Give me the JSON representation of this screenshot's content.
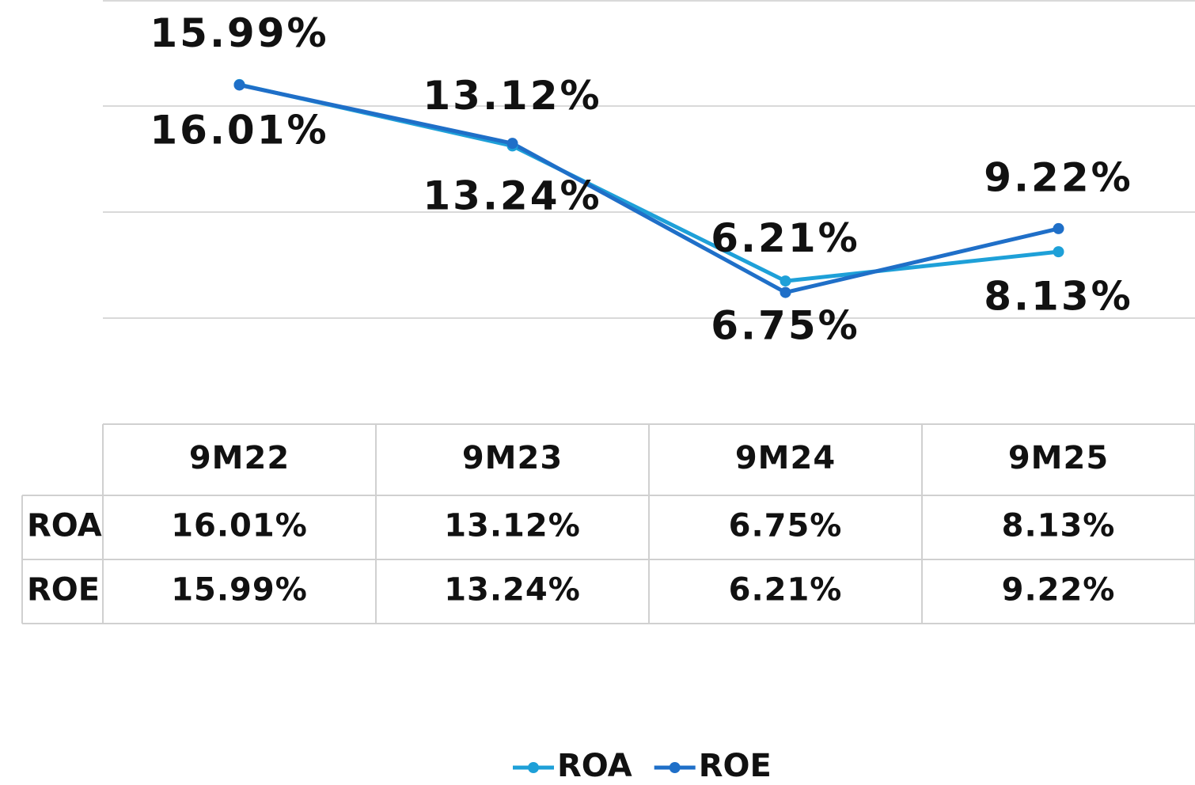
{
  "chart_data": {
    "type": "line",
    "categories": [
      "9M22",
      "9M23",
      "9M24",
      "9M25"
    ],
    "series": [
      {
        "name": "ROA",
        "color": "#1ea0d8",
        "values": [
          16.01,
          13.12,
          6.75,
          8.13
        ],
        "value_labels": [
          "16.01%",
          "13.12%",
          "6.75%",
          "8.13%"
        ]
      },
      {
        "name": "ROE",
        "color": "#1f6fc8",
        "values": [
          15.99,
          13.24,
          6.21,
          9.22
        ],
        "value_labels": [
          "15.99%",
          "13.24%",
          "6.21%",
          "9.22%"
        ]
      }
    ],
    "ylim": [
      0,
      20
    ],
    "yticks": [
      5,
      10,
      15,
      20
    ],
    "grid": true,
    "legend": "bottom"
  }
}
